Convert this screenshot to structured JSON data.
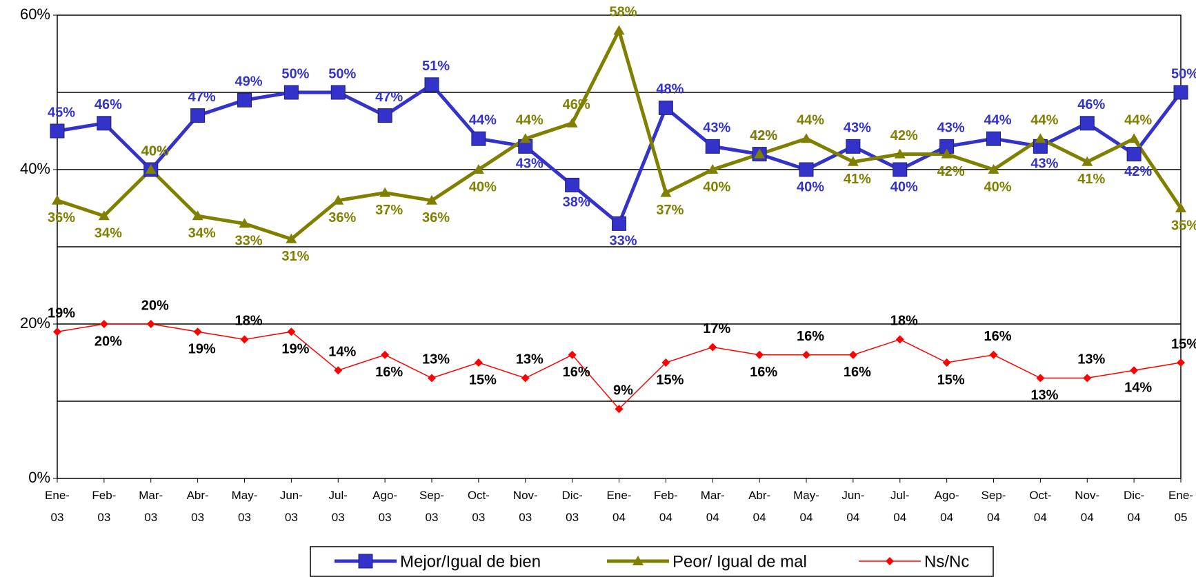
{
  "chart_data": {
    "type": "line",
    "categories": [
      "Ene-03",
      "Feb-03",
      "Mar-03",
      "Abr-03",
      "May-03",
      "Jun-03",
      "Jul-03",
      "Ago-03",
      "Sep-03",
      "Oct-03",
      "Nov-03",
      "Dic-03",
      "Ene-04",
      "Feb-04",
      "Mar-04",
      "Abr-04",
      "May-04",
      "Jun-04",
      "Jul-04",
      "Ago-04",
      "Sep-04",
      "Oct-04",
      "Nov-04",
      "Dic-04",
      "Ene-05"
    ],
    "series": [
      {
        "name": "Mejor/Igual de bien",
        "color": "#3333cc",
        "label_color": "#3333cc",
        "marker": "square",
        "values": [
          45,
          46,
          40,
          47,
          49,
          50,
          50,
          47,
          51,
          44,
          43,
          38,
          33,
          48,
          43,
          42,
          40,
          43,
          40,
          43,
          44,
          43,
          46,
          42,
          50
        ],
        "value_labels": [
          "45%",
          "46%",
          "40%",
          "47%",
          "49%",
          "50%",
          "50%",
          "47%",
          "51%",
          "44%",
          "43%",
          "38%",
          "33%",
          "48%",
          "43%",
          "42%",
          "40%",
          "43%",
          "40%",
          "43%",
          "44%",
          "43%",
          "46%",
          "42%",
          "50%"
        ]
      },
      {
        "name": "Peor/ Igual de mal",
        "color": "#808000",
        "label_color": "#808000",
        "marker": "triangle",
        "values": [
          36,
          34,
          40,
          34,
          33,
          31,
          36,
          37,
          36,
          40,
          44,
          46,
          58,
          37,
          40,
          42,
          44,
          41,
          42,
          42,
          40,
          44,
          41,
          44,
          35
        ],
        "value_labels": [
          "36%",
          "34%",
          "40%",
          "34%",
          "33%",
          "31%",
          "36%",
          "37%",
          "36%",
          "40%",
          "44%",
          "46%",
          "58%",
          "37%",
          "40%",
          "42%",
          "44%",
          "41%",
          "42%",
          "42%",
          "40%",
          "44%",
          "41%",
          "44%",
          "35%"
        ]
      },
      {
        "name": "Ns/Nc",
        "color": "#ff0000",
        "label_color": "#000000",
        "marker": "diamond",
        "values": [
          19,
          20,
          20,
          19,
          18,
          19,
          14,
          16,
          13,
          15,
          13,
          16,
          9,
          15,
          17,
          16,
          16,
          16,
          18,
          15,
          16,
          13,
          13,
          14,
          15
        ],
        "value_labels": [
          "19%",
          "20%",
          "20%",
          "19%",
          "18%",
          "19%",
          "14%",
          "16%",
          "13%",
          "15%",
          "13%",
          "16%",
          "9%",
          "15%",
          "17%",
          "16%",
          "16%",
          "16%",
          "18%",
          "15%",
          "16%",
          "13%",
          "13%",
          "14%",
          "15%"
        ]
      }
    ],
    "ylim": [
      0,
      60
    ],
    "yticks": [
      {
        "value": 0,
        "label": "0%"
      },
      {
        "value": 20,
        "label": "20%"
      },
      {
        "value": 40,
        "label": "40%"
      },
      {
        "value": 60,
        "label": "60%"
      }
    ],
    "ygrid": [
      10,
      20,
      30,
      40,
      50
    ],
    "legend": "bottom"
  }
}
